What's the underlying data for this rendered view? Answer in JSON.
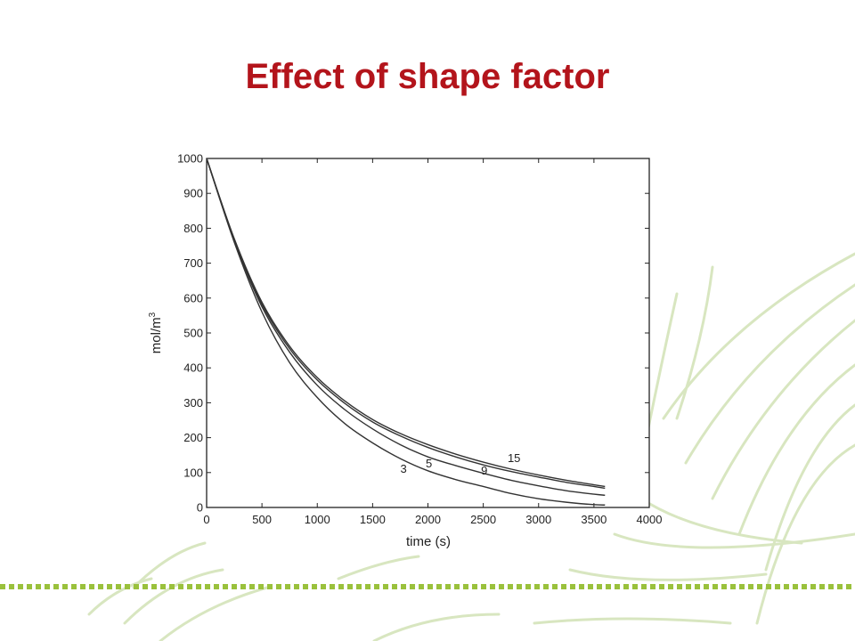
{
  "slide": {
    "title": "Effect of shape factor"
  },
  "colors": {
    "title": "#b3141b",
    "rule": "#9ac13c",
    "decor": "#d8e6c0",
    "curve": "#333333"
  },
  "chart_data": {
    "type": "line",
    "title": "",
    "xlabel": "time (s)",
    "ylabel": "mol/m",
    "ylabel_superscript": "3",
    "xlim": [
      0,
      4000
    ],
    "ylim": [
      0,
      1000
    ],
    "xticks": [
      "0",
      "500",
      "1000",
      "1500",
      "2000",
      "2500",
      "3000",
      "3500",
      "4000"
    ],
    "yticks": [
      "0",
      "100",
      "200",
      "300",
      "400",
      "500",
      "600",
      "700",
      "800",
      "900",
      "1000"
    ],
    "grid": false,
    "series": [
      {
        "name": "3",
        "label_x": 1750,
        "label_y": 100,
        "x": [
          0,
          250,
          500,
          750,
          1000,
          1250,
          1500,
          1750,
          2000,
          2250,
          2500,
          2750,
          3000,
          3250,
          3500,
          3600
        ],
        "values": [
          1000,
          760,
          560,
          415,
          315,
          240,
          185,
          140,
          105,
          80,
          60,
          40,
          25,
          15,
          8,
          7
        ]
      },
      {
        "name": "5",
        "label_x": 1980,
        "label_y": 115,
        "x": [
          0,
          250,
          500,
          750,
          1000,
          1250,
          1500,
          1750,
          2000,
          2250,
          2500,
          2750,
          3000,
          3250,
          3500,
          3600
        ],
        "values": [
          1000,
          765,
          575,
          445,
          350,
          280,
          225,
          180,
          145,
          120,
          98,
          78,
          62,
          48,
          38,
          35
        ]
      },
      {
        "name": "9",
        "label_x": 2480,
        "label_y": 95,
        "x": [
          0,
          250,
          500,
          750,
          1000,
          1250,
          1500,
          1750,
          2000,
          2250,
          2500,
          2750,
          3000,
          3250,
          3500,
          3600
        ],
        "values": [
          1000,
          768,
          582,
          455,
          365,
          298,
          245,
          205,
          172,
          145,
          122,
          103,
          87,
          72,
          60,
          55
        ]
      },
      {
        "name": "15",
        "label_x": 2720,
        "label_y": 130,
        "x": [
          0,
          250,
          500,
          750,
          1000,
          1250,
          1500,
          1750,
          2000,
          2250,
          2500,
          2750,
          3000,
          3250,
          3500,
          3600
        ],
        "values": [
          1000,
          770,
          588,
          462,
          372,
          305,
          252,
          212,
          180,
          153,
          130,
          110,
          93,
          78,
          65,
          60
        ]
      }
    ]
  }
}
